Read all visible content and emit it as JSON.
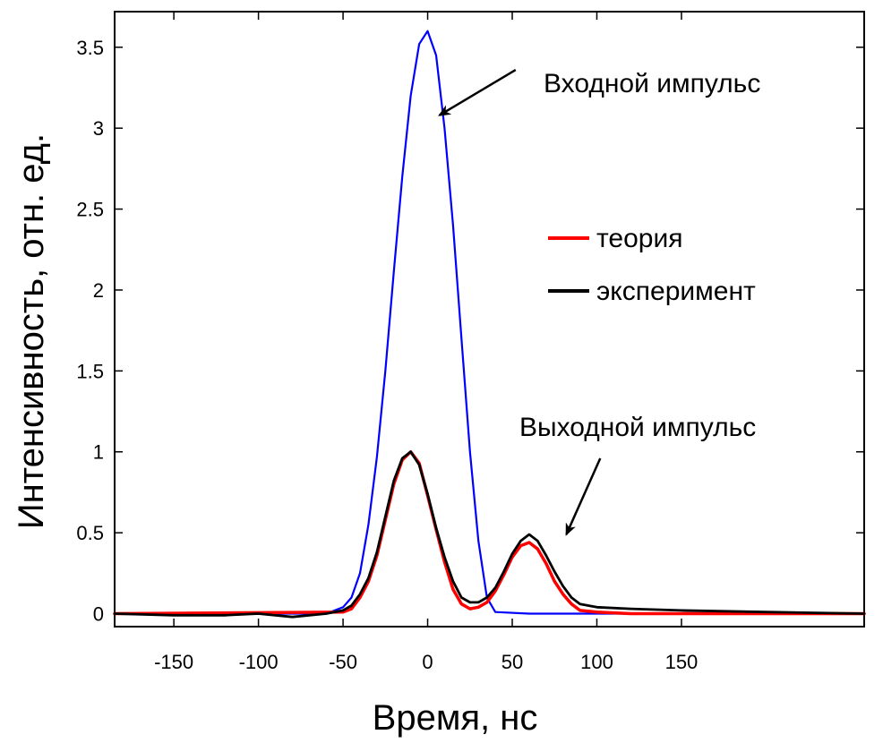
{
  "chart_data": {
    "type": "line",
    "title": "",
    "xlabel": "Время, нс",
    "ylabel": "Интенсивность, отн. ед.",
    "xlim": [
      -185,
      258
    ],
    "ylim": [
      -0.08,
      3.72
    ],
    "x_ticks": [
      -150,
      -100,
      -50,
      0,
      50,
      100,
      150
    ],
    "x_tick_labels": [
      "-150",
      "-100",
      "-50",
      "0",
      "50",
      "100",
      "150"
    ],
    "y_ticks": [
      0,
      0.5,
      1,
      1.5,
      2,
      2.5,
      3,
      3.5
    ],
    "y_tick_labels": [
      "0",
      "0.5",
      "1",
      "1.5",
      "2",
      "2.5",
      "3",
      "3.5"
    ],
    "grid": false,
    "legend_position": "right-middle",
    "series": [
      {
        "name": "",
        "color": "#0000ff",
        "x": [
          -185,
          -60,
          -50,
          -45,
          -40,
          -35,
          -30,
          -25,
          -20,
          -15,
          -10,
          -5,
          0,
          5,
          10,
          15,
          20,
          25,
          30,
          35,
          40,
          60,
          100,
          150,
          258
        ],
        "y": [
          0.0,
          0.0,
          0.04,
          0.1,
          0.25,
          0.55,
          0.97,
          1.5,
          2.11,
          2.7,
          3.2,
          3.52,
          3.6,
          3.45,
          3.0,
          2.4,
          1.7,
          1.0,
          0.45,
          0.1,
          0.01,
          0.0,
          0.0,
          0.0,
          0.0
        ]
      },
      {
        "name": "теория",
        "color": "#ff0000",
        "x": [
          -185,
          -50,
          -45,
          -40,
          -35,
          -30,
          -25,
          -20,
          -15,
          -10,
          -5,
          0,
          5,
          10,
          15,
          20,
          25,
          30,
          35,
          40,
          45,
          50,
          55,
          60,
          65,
          70,
          75,
          80,
          85,
          90,
          100,
          120,
          150,
          258
        ],
        "y": [
          0.0,
          0.01,
          0.03,
          0.1,
          0.2,
          0.36,
          0.58,
          0.8,
          0.95,
          1.0,
          0.93,
          0.73,
          0.52,
          0.32,
          0.15,
          0.06,
          0.03,
          0.04,
          0.07,
          0.14,
          0.24,
          0.35,
          0.42,
          0.44,
          0.4,
          0.31,
          0.2,
          0.12,
          0.06,
          0.02,
          0.01,
          0.0,
          0.0,
          0.0
        ]
      },
      {
        "name": "эксперимент",
        "color": "#000000",
        "x": [
          -185,
          -150,
          -120,
          -100,
          -80,
          -60,
          -50,
          -45,
          -40,
          -35,
          -30,
          -25,
          -20,
          -15,
          -10,
          -5,
          0,
          5,
          10,
          15,
          20,
          25,
          30,
          35,
          40,
          45,
          50,
          55,
          60,
          65,
          70,
          75,
          80,
          85,
          90,
          95,
          100,
          120,
          150,
          200,
          258
        ],
        "y": [
          0.0,
          -0.01,
          -0.01,
          0.0,
          -0.02,
          0.0,
          0.02,
          0.05,
          0.12,
          0.22,
          0.38,
          0.6,
          0.82,
          0.96,
          1.0,
          0.92,
          0.74,
          0.53,
          0.35,
          0.2,
          0.1,
          0.07,
          0.07,
          0.1,
          0.16,
          0.26,
          0.37,
          0.45,
          0.49,
          0.45,
          0.36,
          0.26,
          0.17,
          0.1,
          0.06,
          0.05,
          0.04,
          0.03,
          0.02,
          0.01,
          0.0
        ]
      }
    ],
    "annotations": [
      {
        "text": "Входной импульс",
        "arrow_from": [
          52,
          3.36
        ],
        "arrow_to": [
          7,
          3.08
        ]
      },
      {
        "text": "Выходной импульс",
        "arrow_from": [
          102,
          0.96
        ],
        "arrow_to": [
          82,
          0.49
        ]
      }
    ]
  }
}
